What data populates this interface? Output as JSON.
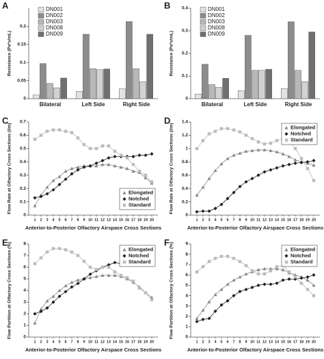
{
  "chart_data": [
    {
      "type": "bar",
      "label": "A",
      "y_label": "Resistance (Pa*s/mL)",
      "categories": [
        "Bilateral",
        "Left Side",
        "Right Side"
      ],
      "series": [
        {
          "name": "DN001",
          "color": "#e2e2e2",
          "values": [
            0.01,
            0.02,
            0.027
          ]
        },
        {
          "name": "DN002",
          "color": "#8c8c8c",
          "values": [
            0.097,
            0.178,
            0.213
          ]
        },
        {
          "name": "DN003",
          "color": "#b8b8b8",
          "values": [
            0.042,
            0.083,
            0.083
          ]
        },
        {
          "name": "DN008",
          "color": "#d2d2d2",
          "values": [
            0.03,
            0.08,
            0.047
          ]
        },
        {
          "name": "DN009",
          "color": "#707070",
          "values": [
            0.057,
            0.082,
            0.178
          ]
        }
      ],
      "ylim": [
        0,
        0.25
      ],
      "yticks": [
        0,
        0.05,
        0.1,
        0.15,
        0.2
      ],
      "legend": "upper left"
    },
    {
      "type": "bar",
      "label": "B",
      "y_label": "Resistance (Pa*s/mL)",
      "categories": [
        "Bilateral",
        "Left Side",
        "Right Side"
      ],
      "series": [
        {
          "name": "DN001",
          "color": "#e2e2e2",
          "values": [
            0.02,
            0.035,
            0.045
          ]
        },
        {
          "name": "DN002",
          "color": "#8c8c8c",
          "values": [
            0.152,
            0.28,
            0.34
          ]
        },
        {
          "name": "DN003",
          "color": "#b8b8b8",
          "values": [
            0.062,
            0.125,
            0.125
          ]
        },
        {
          "name": "DN008",
          "color": "#d2d2d2",
          "values": [
            0.05,
            0.125,
            0.075
          ]
        },
        {
          "name": "DN009",
          "color": "#707070",
          "values": [
            0.09,
            0.13,
            0.295
          ]
        }
      ],
      "ylim": [
        0,
        0.4
      ],
      "yticks": [
        0,
        0.1,
        0.2,
        0.3,
        0.4
      ],
      "legend": "upper left"
    },
    {
      "type": "line",
      "label": "C",
      "y_label": "Flow Rate at Olfactory Cross Sections (l/m)",
      "x_label": "Anterior-to-Posterior Olfactory Airspace Cross Sections",
      "x": [
        1,
        2,
        3,
        4,
        5,
        6,
        7,
        8,
        9,
        10,
        11,
        12,
        13,
        14,
        15,
        16,
        17,
        18,
        19,
        20
      ],
      "series": [
        {
          "name": "Elongated",
          "color": "#888888",
          "marker": "triangle",
          "values": [
            0.07,
            0.15,
            0.21,
            0.26,
            0.29,
            0.33,
            0.35,
            0.36,
            0.37,
            0.37,
            0.37,
            0.38,
            0.38,
            0.37,
            0.36,
            0.35,
            0.33,
            0.32,
            0.28,
            0.24
          ]
        },
        {
          "name": "Notched",
          "color": "#222222",
          "marker": "diamond",
          "values": [
            0.13,
            0.14,
            0.16,
            0.19,
            0.23,
            0.27,
            0.31,
            0.34,
            0.36,
            0.37,
            0.39,
            0.41,
            0.43,
            0.44,
            0.44,
            0.44,
            0.44,
            0.45,
            0.45,
            0.46
          ]
        },
        {
          "name": "Standard",
          "color": "#bbbbbb",
          "marker": "square",
          "values": [
            0.57,
            0.6,
            0.63,
            0.64,
            0.64,
            0.63,
            0.62,
            0.58,
            0.53,
            0.5,
            0.5,
            0.52,
            0.52,
            0.48,
            0.45,
            0.43,
            0.38,
            0.33,
            0.3,
            0.25
          ]
        }
      ],
      "xlim": [
        0,
        21
      ],
      "xticks": [
        1,
        2,
        3,
        4,
        5,
        6,
        7,
        8,
        9,
        10,
        11,
        12,
        13,
        14,
        15,
        16,
        17,
        18,
        19,
        20
      ],
      "ylim": [
        0,
        0.7
      ],
      "yticks": [
        0,
        0.1,
        0.2,
        0.3,
        0.4,
        0.5,
        0.6,
        0.7
      ],
      "legend": "lower right"
    },
    {
      "type": "line",
      "label": "D",
      "y_label": "Flow Rate at Olfactory Cross Sections (l/m)",
      "x_label": "Anterior-to-Posterior Olfactory Airspace Cross Sections",
      "x": [
        1,
        2,
        3,
        4,
        5,
        6,
        7,
        8,
        9,
        10,
        11,
        12,
        13,
        14,
        15,
        16,
        17,
        18,
        19,
        20
      ],
      "series": [
        {
          "name": "Elongated",
          "color": "#888888",
          "marker": "triangle",
          "values": [
            0.3,
            0.42,
            0.55,
            0.67,
            0.77,
            0.85,
            0.9,
            0.93,
            0.96,
            0.97,
            0.98,
            0.98,
            0.97,
            0.95,
            0.92,
            0.88,
            0.83,
            0.8,
            0.78,
            0.75
          ]
        },
        {
          "name": "Notched",
          "color": "#222222",
          "marker": "diamond",
          "values": [
            0.05,
            0.06,
            0.06,
            0.1,
            0.16,
            0.25,
            0.34,
            0.43,
            0.5,
            0.55,
            0.6,
            0.65,
            0.68,
            0.71,
            0.74,
            0.76,
            0.78,
            0.79,
            0.8,
            0.82
          ]
        },
        {
          "name": "Standard",
          "color": "#bbbbbb",
          "marker": "square",
          "values": [
            1.0,
            1.12,
            1.22,
            1.26,
            1.3,
            1.3,
            1.28,
            1.25,
            1.2,
            1.15,
            1.1,
            1.07,
            1.08,
            1.12,
            1.15,
            1.12,
            1.0,
            0.85,
            0.7,
            0.52
          ]
        }
      ],
      "xlim": [
        0,
        21
      ],
      "xticks": [
        1,
        2,
        3,
        4,
        5,
        6,
        7,
        8,
        9,
        10,
        11,
        12,
        13,
        14,
        15,
        16,
        17,
        18,
        19,
        20
      ],
      "ylim": [
        0,
        1.4
      ],
      "yticks": [
        0,
        0.2,
        0.4,
        0.6,
        0.8,
        1,
        1.2,
        1.4
      ],
      "legend": "upper right"
    },
    {
      "type": "line",
      "label": "E",
      "y_label": "Flow Partition at Olfactory Cross Sections (%)",
      "x_label": "Anterior-to-Posterior Olfactory Airspace Cross Sections",
      "x": [
        1,
        2,
        3,
        4,
        5,
        6,
        7,
        8,
        9,
        10,
        11,
        12,
        13,
        14,
        15,
        16,
        17,
        18,
        19,
        20
      ],
      "series": [
        {
          "name": "Elongated",
          "color": "#888888",
          "marker": "triangle",
          "values": [
            1.2,
            2.4,
            3.1,
            3.5,
            4.0,
            4.4,
            4.7,
            4.9,
            5.0,
            5.1,
            5.2,
            5.3,
            5.3,
            5.3,
            5.2,
            5.0,
            4.7,
            4.3,
            3.8,
            3.4
          ]
        },
        {
          "name": "Notched",
          "color": "#222222",
          "marker": "diamond",
          "values": [
            2.0,
            2.2,
            2.5,
            3.0,
            3.5,
            3.9,
            4.3,
            4.6,
            5.0,
            5.4,
            5.7,
            6.0,
            6.2,
            6.4,
            6.3,
            6.3,
            6.3,
            6.3,
            6.5,
            6.7
          ]
        },
        {
          "name": "Standard",
          "color": "#bbbbbb",
          "marker": "square",
          "values": [
            6.3,
            6.8,
            7.3,
            7.6,
            7.6,
            7.5,
            7.3,
            7.0,
            6.5,
            6.0,
            5.8,
            6.0,
            6.0,
            5.6,
            5.3,
            5.1,
            4.8,
            4.2,
            3.8,
            3.2
          ]
        }
      ],
      "xlim": [
        0,
        21
      ],
      "xticks": [
        1,
        2,
        3,
        4,
        5,
        6,
        7,
        8,
        9,
        10,
        11,
        12,
        13,
        14,
        15,
        16,
        17,
        18,
        19,
        20
      ],
      "ylim": [
        0,
        8
      ],
      "yticks": [
        0,
        1,
        2,
        3,
        4,
        5,
        6,
        7,
        8
      ],
      "legend": "upper right"
    },
    {
      "type": "line",
      "label": "F",
      "y_label": "Flow Partition at Olfactory Cross Sections (%)",
      "x_label": "Anterior-to-Posterior Olfactory Airspace Cross Sections",
      "x": [
        1,
        2,
        3,
        4,
        5,
        6,
        7,
        8,
        9,
        10,
        11,
        12,
        13,
        14,
        15,
        16,
        17,
        18,
        19,
        20
      ],
      "series": [
        {
          "name": "Elongated",
          "color": "#888888",
          "marker": "triangle",
          "values": [
            1.8,
            2.6,
            3.4,
            4.1,
            4.6,
            5.1,
            5.5,
            5.8,
            6.1,
            6.3,
            6.5,
            6.6,
            6.6,
            6.6,
            6.5,
            6.2,
            6.0,
            5.8,
            5.5,
            5.0
          ]
        },
        {
          "name": "Notched",
          "color": "#222222",
          "marker": "diamond",
          "values": [
            1.5,
            1.7,
            1.8,
            2.5,
            3.1,
            3.5,
            4.0,
            4.4,
            4.6,
            4.8,
            5.0,
            5.1,
            5.1,
            5.2,
            5.5,
            5.6,
            5.6,
            5.7,
            5.8,
            6.0
          ]
        },
        {
          "name": "Standard",
          "color": "#bbbbbb",
          "marker": "square",
          "values": [
            6.3,
            6.8,
            7.3,
            7.6,
            7.8,
            7.8,
            7.6,
            7.3,
            6.9,
            6.4,
            6.1,
            6.1,
            6.4,
            6.8,
            6.9,
            6.3,
            5.8,
            5.2,
            4.6,
            4.0
          ]
        }
      ],
      "xlim": [
        0,
        21
      ],
      "xticks": [
        1,
        2,
        3,
        4,
        5,
        6,
        7,
        8,
        9,
        10,
        11,
        12,
        13,
        14,
        15,
        16,
        17,
        18,
        19,
        20
      ],
      "ylim": [
        0,
        9
      ],
      "yticks": [
        0,
        1,
        2,
        3,
        4,
        5,
        6,
        7,
        8,
        9
      ],
      "legend": "upper right"
    }
  ]
}
